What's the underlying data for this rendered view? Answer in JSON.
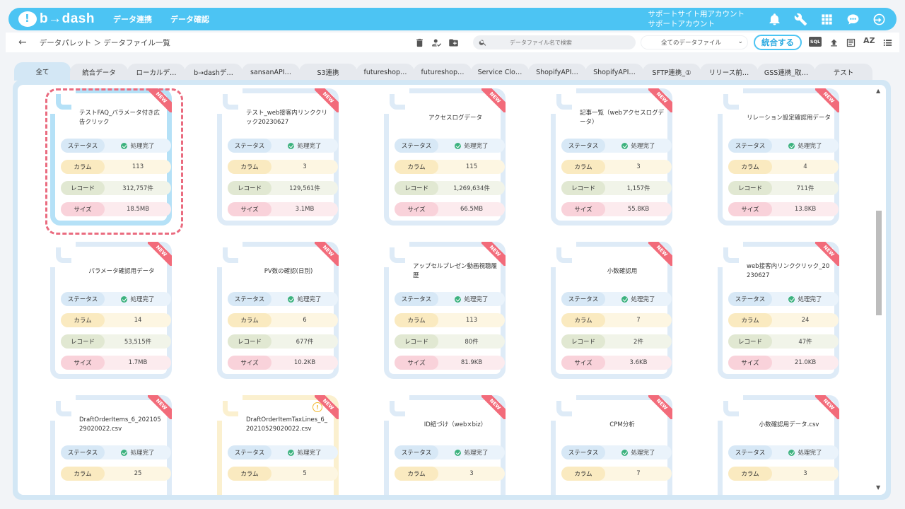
{
  "app": {
    "logo_text": "b→dash",
    "nav": [
      "データ連携",
      "データ確認"
    ],
    "account_line1": "サポートサイト用アカウント",
    "account_line2": "サポートアカウント"
  },
  "toolbar": {
    "breadcrumb": "データパレット ＞ データファイル一覧",
    "search_placeholder": "データファイル名で検索",
    "filter_selected": "全てのデータファイル",
    "merge_label": "統合する",
    "sql_label": "SQL",
    "sort_label": "AZ"
  },
  "tabs": [
    "全て",
    "統合データ",
    "ローカルデ…",
    "b→dashデ…",
    "sansanAPI…",
    "S3連携",
    "futureshop…",
    "futureshop…",
    "Service Clo…",
    "ShopifyAPI…",
    "ShopifyAPI…",
    "SFTP連携_①",
    "リリース前…",
    "GSS連携_取…",
    "テスト"
  ],
  "labels": {
    "status": "ステータス",
    "column": "カラム",
    "record": "レコード",
    "size": "サイズ",
    "new": "NEW",
    "warn": "!"
  },
  "cards": [
    {
      "title": "テストFAQ_パラメータ付き広告クリック",
      "status": "処理完了",
      "columns": "113",
      "records": "312,757件",
      "size": "18.5MB"
    },
    {
      "title": "テスト_web接客内リンククリック20230627",
      "status": "処理完了",
      "columns": "3",
      "records": "129,561件",
      "size": "3.1MB"
    },
    {
      "title": "アクセスログデータ",
      "status": "処理完了",
      "columns": "115",
      "records": "1,269,634件",
      "size": "66.5MB"
    },
    {
      "title": "記事一覧（webアクセスログデータ）",
      "status": "処理完了",
      "columns": "3",
      "records": "1,157件",
      "size": "55.8KB"
    },
    {
      "title": "リレーション設定確認用データ",
      "status": "処理完了",
      "columns": "4",
      "records": "711件",
      "size": "13.8KB"
    },
    {
      "title": "パラメータ確認用データ",
      "status": "処理完了",
      "columns": "14",
      "records": "53,515件",
      "size": "1.7MB"
    },
    {
      "title": "PV数の確認(日別)",
      "status": "処理完了",
      "columns": "6",
      "records": "677件",
      "size": "10.2KB"
    },
    {
      "title": "アップセルプレゼン動画視聴履歴",
      "status": "処理完了",
      "columns": "113",
      "records": "80件",
      "size": "81.9KB"
    },
    {
      "title": "小数確認用",
      "status": "処理完了",
      "columns": "7",
      "records": "2件",
      "size": "3.6KB"
    },
    {
      "title": "web接客内リンククリック_20230627",
      "status": "処理完了",
      "columns": "24",
      "records": "47件",
      "size": "21.0KB"
    },
    {
      "title": "DraftOrderItems_6_20210529020022.csv",
      "status": "処理完了",
      "columns": "25"
    },
    {
      "title": "DraftOrderItemTaxLines_6_20210529020022.csv",
      "status": "処理完了",
      "columns": "5"
    },
    {
      "title": "ID紐づけ（web×biz）",
      "status": "処理完了",
      "columns": "3"
    },
    {
      "title": "CPM分析",
      "status": "処理完了",
      "columns": "7"
    },
    {
      "title": "小数確認用データ.csv",
      "status": "処理完了",
      "columns": "3"
    }
  ]
}
